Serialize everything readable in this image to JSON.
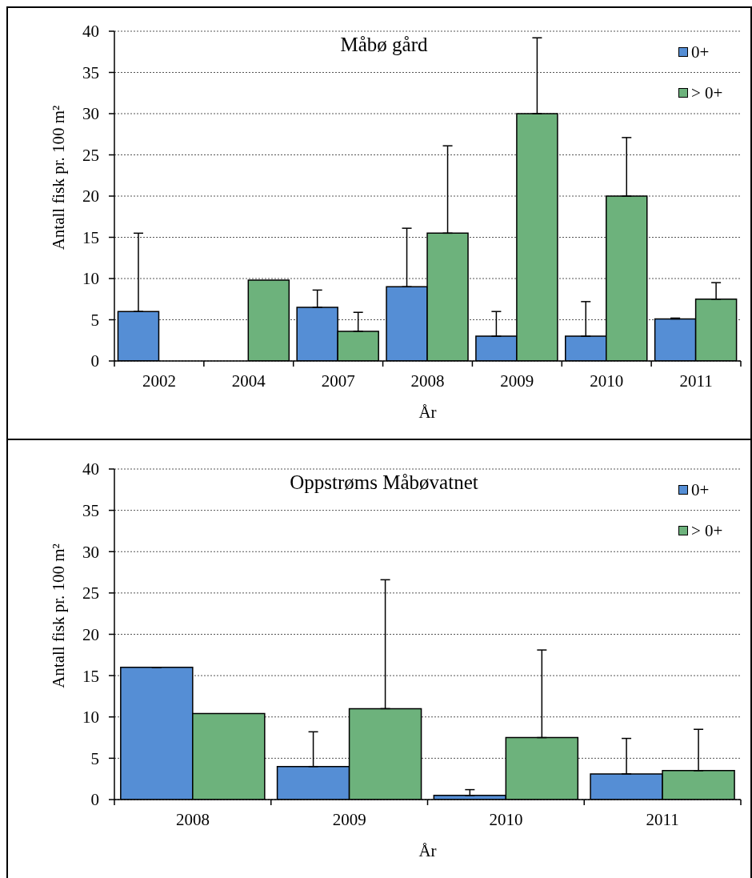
{
  "chart_data": [
    {
      "type": "bar",
      "title": "Måbø gård",
      "xlabel": "År",
      "ylabel": "Antall fisk pr. 100 m²",
      "categories": [
        "2002",
        "2004",
        "2007",
        "2008",
        "2009",
        "2010",
        "2011"
      ],
      "series": [
        {
          "name": "0+",
          "color": "#558ed5",
          "values": [
            6.0,
            null,
            6.5,
            9.0,
            3.0,
            3.0,
            5.1
          ],
          "errors": [
            [
              6.0,
              15.5
            ],
            null,
            [
              6.5,
              8.6
            ],
            [
              9.0,
              16.1
            ],
            [
              3.0,
              6.0
            ],
            [
              3.0,
              7.2
            ],
            [
              5.1,
              5.2
            ]
          ]
        },
        {
          "name": "> 0+",
          "color": "#6db27c",
          "values": [
            null,
            9.8,
            3.6,
            15.5,
            30.0,
            20.0,
            7.5
          ],
          "errors": [
            null,
            null,
            [
              3.6,
              5.9
            ],
            [
              15.5,
              26.1
            ],
            [
              30.0,
              39.2
            ],
            [
              20.0,
              27.1
            ],
            [
              7.5,
              9.5
            ]
          ]
        }
      ],
      "ylim": [
        0,
        40
      ],
      "yticks": [
        0,
        5,
        10,
        15,
        20,
        25,
        30,
        35,
        40
      ],
      "grid": "y",
      "legend": "top right"
    },
    {
      "type": "bar",
      "title": "Oppstrøms Måbøvatnet",
      "xlabel": "År",
      "ylabel": "Antall fisk pr. 100 m²",
      "categories": [
        "2008",
        "2009",
        "2010",
        "2011"
      ],
      "series": [
        {
          "name": "0+",
          "color": "#558ed5",
          "values": [
            16.0,
            4.0,
            0.5,
            3.1
          ],
          "errors": [
            [
              16.0,
              16.0
            ],
            [
              4.0,
              8.2
            ],
            [
              0.5,
              1.2
            ],
            [
              3.1,
              7.4
            ]
          ]
        },
        {
          "name": "> 0+",
          "color": "#6db27c",
          "values": [
            10.4,
            11.0,
            7.5,
            3.5
          ],
          "errors": [
            null,
            [
              11.0,
              26.6
            ],
            [
              7.5,
              18.1
            ],
            [
              3.5,
              8.5
            ]
          ]
        }
      ],
      "ylim": [
        0,
        40
      ],
      "yticks": [
        0,
        5,
        10,
        15,
        20,
        25,
        30,
        35,
        40
      ],
      "grid": "y",
      "legend": "top right"
    }
  ]
}
